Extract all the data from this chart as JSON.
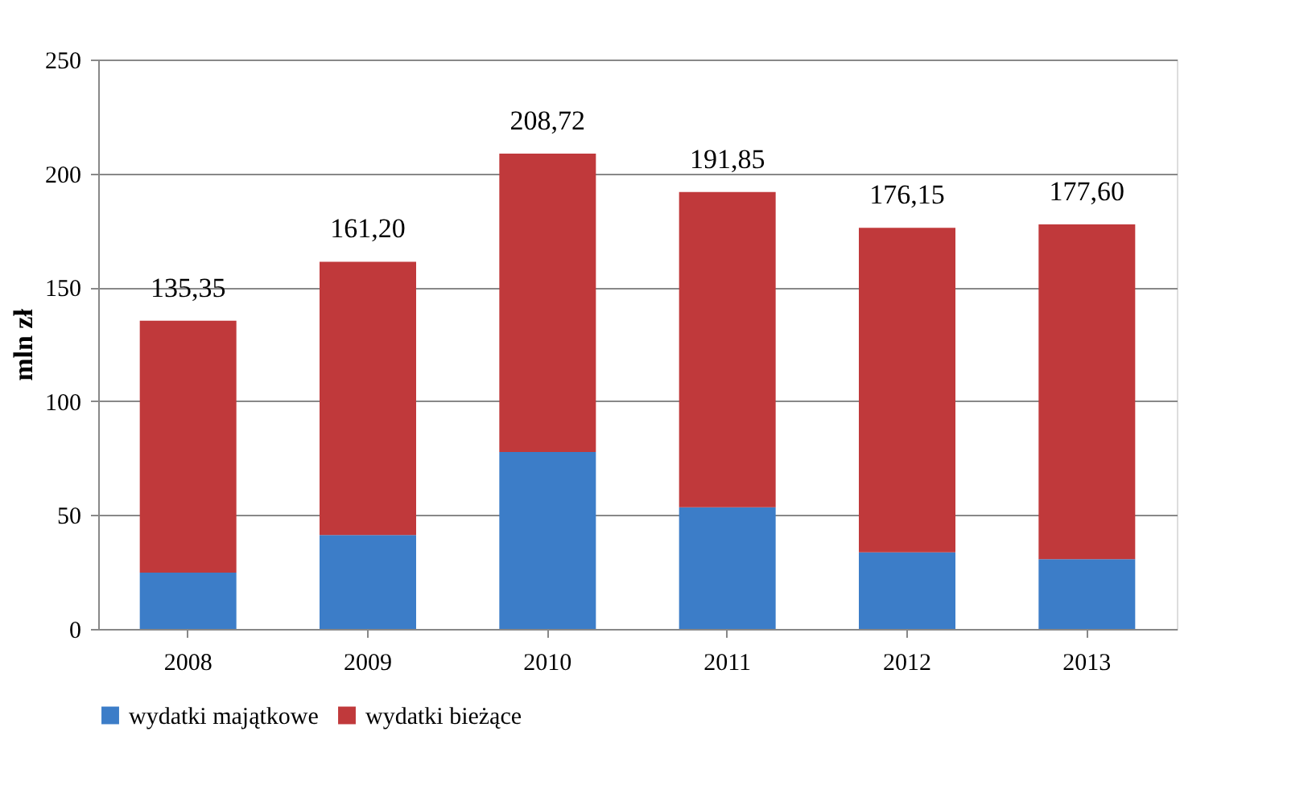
{
  "chart_data": {
    "type": "bar",
    "ylabel": "mln zł",
    "stacked": true,
    "categories": [
      "2008",
      "2009",
      "2010",
      "2011",
      "2012",
      "2013"
    ],
    "series": [
      {
        "name": "wydatki majątkowe",
        "color": "#3c7dc8",
        "values": [
          24.7,
          41.2,
          77.7,
          53.4,
          33.6,
          30.6
        ]
      },
      {
        "name": "wydatki bieżące",
        "color": "#c0393b",
        "values": [
          110.65,
          120.0,
          131.02,
          138.45,
          142.55,
          147.0
        ]
      }
    ],
    "totals": [
      "135,35",
      "161,20",
      "208,72",
      "191,85",
      "176,15",
      "177,60"
    ],
    "ylim": [
      0,
      250
    ],
    "yticks": [
      0,
      50,
      100,
      150,
      200,
      250
    ],
    "grid": "y",
    "legend": "bottom"
  }
}
